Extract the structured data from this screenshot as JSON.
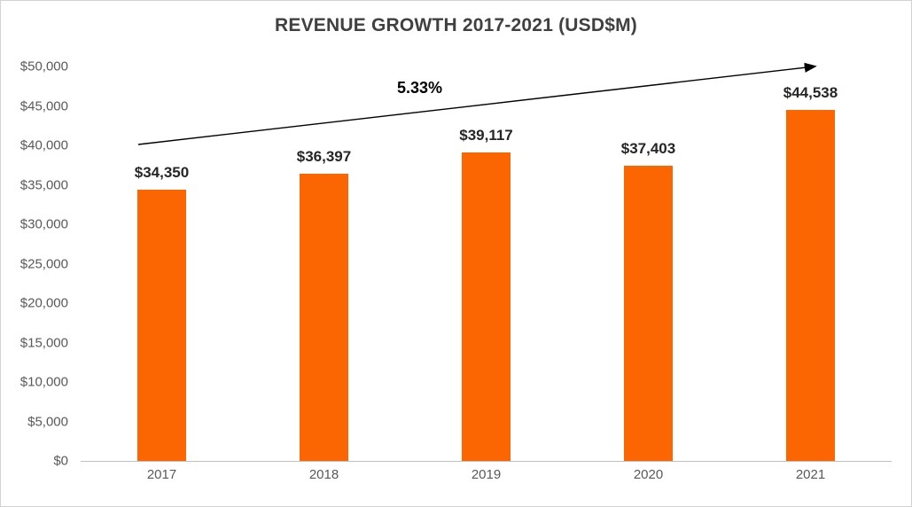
{
  "chart_data": {
    "type": "bar",
    "title": "REVENUE GROWTH 2017-2021 (USD$M)",
    "categories": [
      "2017",
      "2018",
      "2019",
      "2020",
      "2021"
    ],
    "values": [
      34350,
      36397,
      39117,
      37403,
      44538
    ],
    "value_labels": [
      "$34,350",
      "$36,397",
      "$39,117",
      "$37,403",
      "$44,538"
    ],
    "annotation": "5.33%",
    "ylim": [
      0,
      50000
    ],
    "ytick_step": 5000,
    "ytick_labels": [
      "$0",
      "$5,000",
      "$10,000",
      "$15,000",
      "$20,000",
      "$25,000",
      "$30,000",
      "$35,000",
      "$40,000",
      "$45,000",
      "$50,000"
    ],
    "bar_color": "#fb6502",
    "grid": false,
    "legend": "none"
  }
}
